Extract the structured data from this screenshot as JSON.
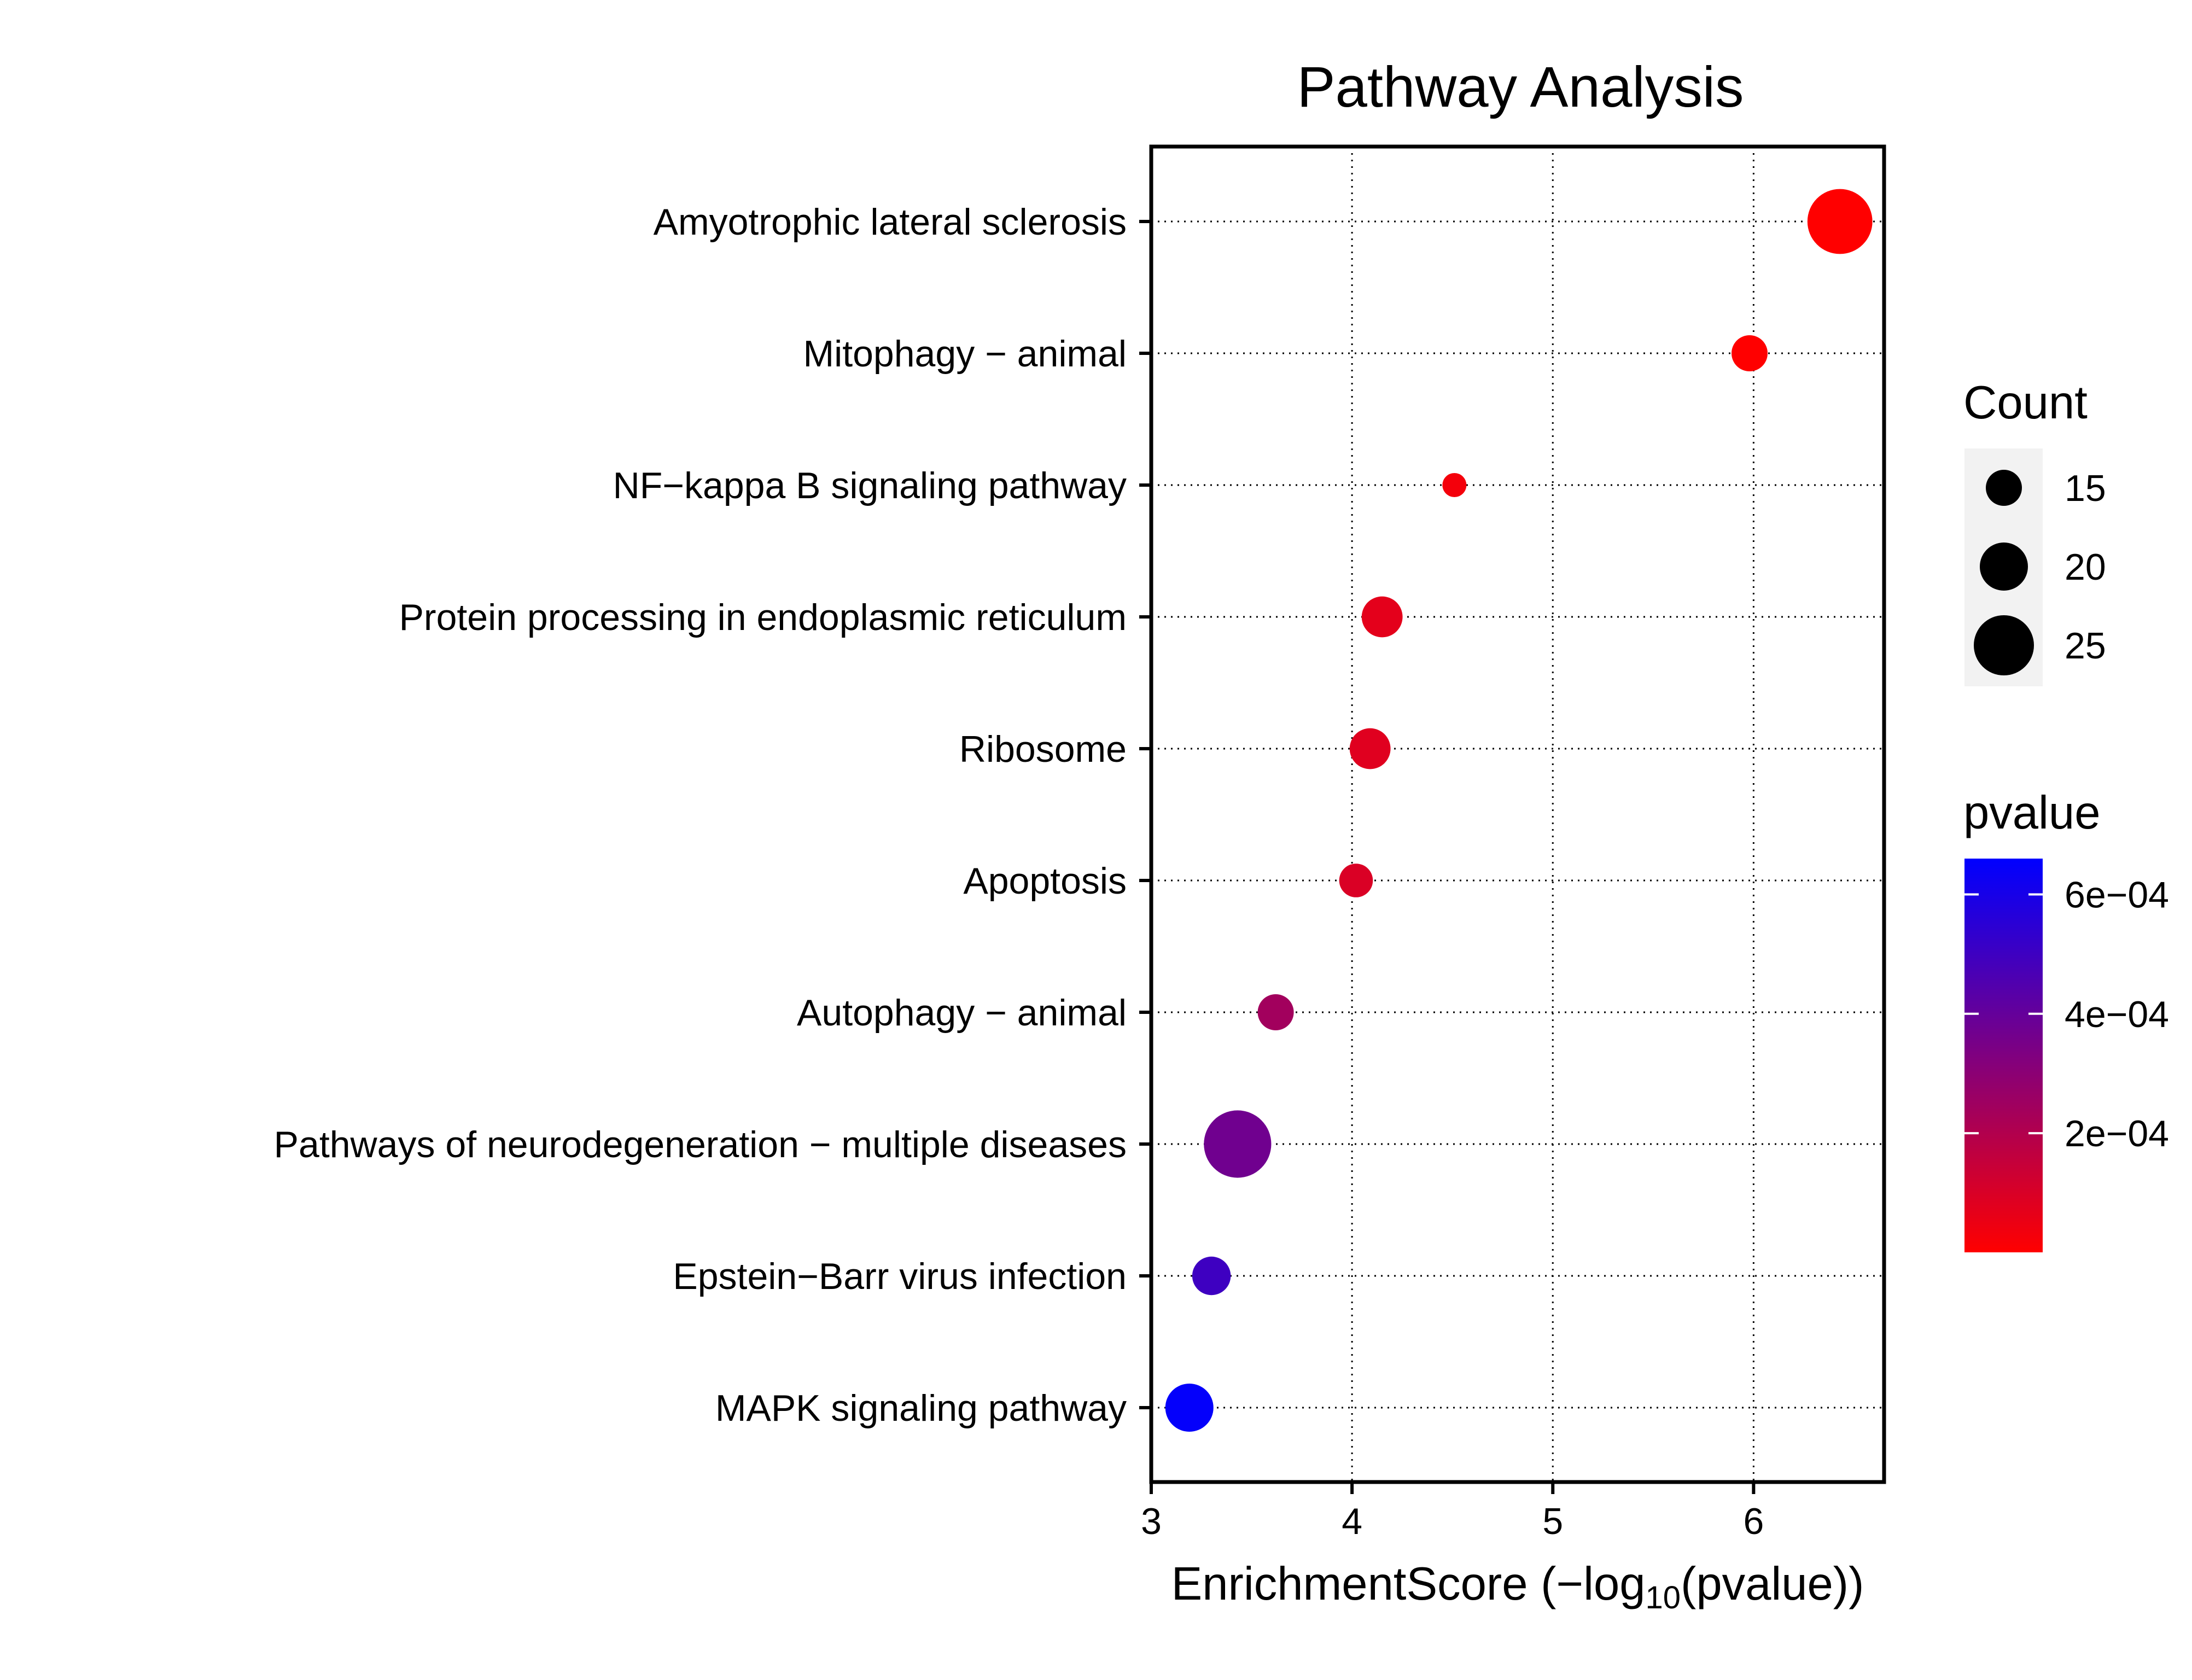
{
  "chart_data": {
    "type": "scatter",
    "title": "Pathway Analysis",
    "xlabel": {
      "prefix": "EnrichmentScore (−log",
      "subscript": "10",
      "suffix": "(pvalue))"
    },
    "ylabel": "",
    "xlim": [
      3,
      6.65
    ],
    "x_ticks": [
      3,
      4,
      5,
      6
    ],
    "grid": "dotted",
    "categories": [
      "Amyotrophic lateral sclerosis",
      "Mitophagy − animal",
      "NF−kappa B signaling pathway",
      "Protein processing in endoplasmic reticulum",
      "Ribosome",
      "Apoptosis",
      "Autophagy − animal",
      "Pathways of neurodegeneration − multiple diseases",
      "Epstein−Barr virus infection",
      "MAPK signaling pathway"
    ],
    "points": [
      {
        "pathway": "Amyotrophic lateral sclerosis",
        "enrichment_score": 6.43,
        "count": 27,
        "pvalue": 4e-07
      },
      {
        "pathway": "Mitophagy − animal",
        "enrichment_score": 5.98,
        "count": 15,
        "pvalue": 1e-06
      },
      {
        "pathway": "NF−kappa B signaling pathway",
        "enrichment_score": 4.51,
        "count": 10,
        "pvalue": 3e-05
      },
      {
        "pathway": "Protein processing in endoplasmic reticulum",
        "enrichment_score": 4.15,
        "count": 17,
        "pvalue": 7e-05
      },
      {
        "pathway": "Ribosome",
        "enrichment_score": 4.09,
        "count": 17,
        "pvalue": 8e-05
      },
      {
        "pathway": "Apoptosis",
        "enrichment_score": 4.02,
        "count": 14,
        "pvalue": 9.5e-05
      },
      {
        "pathway": "Autophagy − animal",
        "enrichment_score": 3.62,
        "count": 15,
        "pvalue": 0.00024
      },
      {
        "pathway": "Pathways of neurodegeneration − multiple diseases",
        "enrichment_score": 3.43,
        "count": 28,
        "pvalue": 0.00037
      },
      {
        "pathway": "Epstein−Barr virus infection",
        "enrichment_score": 3.3,
        "count": 16,
        "pvalue": 0.0005
      },
      {
        "pathway": "MAPK signaling pathway",
        "enrichment_score": 3.19,
        "count": 20,
        "pvalue": 0.00065
      }
    ],
    "legend_size": {
      "title": "Count",
      "entries": [
        {
          "label": "15",
          "value": 15
        },
        {
          "label": "20",
          "value": 20
        },
        {
          "label": "25",
          "value": 25
        }
      ]
    },
    "legend_color": {
      "title": "pvalue",
      "range": [
        4e-07,
        0.00066
      ],
      "low_color": "#ff0000",
      "high_color": "#0000ff",
      "ticks": [
        {
          "label": "6e−04",
          "value": 0.0006
        },
        {
          "label": "4e−04",
          "value": 0.0004
        },
        {
          "label": "2e−04",
          "value": 0.0002
        }
      ]
    },
    "legend_placement": "right"
  }
}
